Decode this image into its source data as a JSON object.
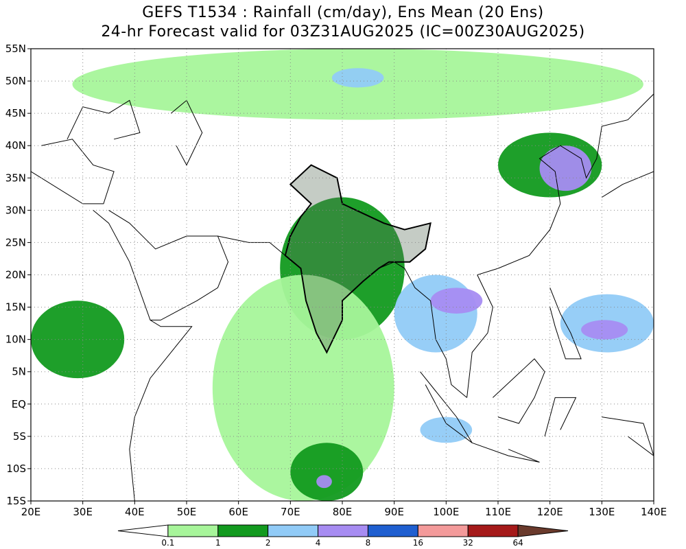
{
  "title_line1": "GEFS T1534 : Rainfall (cm/day), Ens Mean (20 Ens)",
  "title_line2": "24-hr Forecast valid for 03Z31AUG2025 (IC=00Z30AUG2025)",
  "map": {
    "lon_range": [
      20,
      140
    ],
    "lat_range": [
      -15,
      55
    ],
    "lat_labels": [
      "55N",
      "50N",
      "45N",
      "40N",
      "35N",
      "30N",
      "25N",
      "20N",
      "15N",
      "10N",
      "5N",
      "EQ",
      "5S",
      "10S",
      "15S"
    ],
    "lat_values": [
      55,
      50,
      45,
      40,
      35,
      30,
      25,
      20,
      15,
      10,
      5,
      0,
      -5,
      -10,
      -15
    ],
    "lon_labels": [
      "20E",
      "30E",
      "40E",
      "50E",
      "60E",
      "70E",
      "80E",
      "90E",
      "100E",
      "110E",
      "120E",
      "130E",
      "140E"
    ],
    "lon_values": [
      20,
      30,
      40,
      50,
      60,
      70,
      80,
      90,
      100,
      110,
      120,
      130,
      140
    ],
    "grid": "dotted"
  },
  "colorbar": {
    "colors": [
      "#ffffff",
      "#a7f59a",
      "#129a1f",
      "#91cbf7",
      "#a78cf2",
      "#1f5fd0",
      "#f39a9a",
      "#a51a1a",
      "#6a3a2c"
    ],
    "tick_labels": [
      "0.1",
      "1",
      "2",
      "4",
      "8",
      "16",
      "32",
      "64"
    ]
  },
  "rain_regions": [
    {
      "name": "north-russia-band",
      "level": 1,
      "lon": [
        28,
        138
      ],
      "lat": [
        44,
        55
      ]
    },
    {
      "name": "arctic-blue-patch",
      "level": 3,
      "lon": [
        78,
        88
      ],
      "lat": [
        49,
        52
      ]
    },
    {
      "name": "north-china-band",
      "level": 2,
      "lon": [
        110,
        130
      ],
      "lat": [
        32,
        42
      ]
    },
    {
      "name": "japan-sea-blue",
      "level": 4,
      "lon": [
        118,
        128
      ],
      "lat": [
        33,
        40
      ]
    },
    {
      "name": "indian-monsoon",
      "level": 2,
      "lon": [
        68,
        92
      ],
      "lat": [
        10,
        32
      ]
    },
    {
      "name": "bay-of-bengal-blue",
      "level": 3,
      "lon": [
        90,
        106
      ],
      "lat": [
        8,
        20
      ]
    },
    {
      "name": "myanmar-purple",
      "level": 4,
      "lon": [
        97,
        107
      ],
      "lat": [
        14,
        18
      ]
    },
    {
      "name": "arabian-sea-light",
      "level": 1,
      "lon": [
        55,
        90
      ],
      "lat": [
        -15,
        20
      ]
    },
    {
      "name": "east-africa-green",
      "level": 2,
      "lon": [
        20,
        38
      ],
      "lat": [
        4,
        16
      ]
    },
    {
      "name": "philippines-blue",
      "level": 3,
      "lon": [
        122,
        140
      ],
      "lat": [
        8,
        17
      ]
    },
    {
      "name": "philippines-purple",
      "level": 4,
      "lon": [
        126,
        135
      ],
      "lat": [
        10,
        13
      ]
    },
    {
      "name": "sumatra-blue",
      "level": 3,
      "lon": [
        95,
        105
      ],
      "lat": [
        -6,
        -2
      ]
    },
    {
      "name": "indian-ocean-south",
      "level": 2,
      "lon": [
        70,
        84
      ],
      "lat": [
        -15,
        -6
      ]
    },
    {
      "name": "indian-ocean-purple",
      "level": 4,
      "lon": [
        75,
        78
      ],
      "lat": [
        -13,
        -11
      ]
    }
  ]
}
